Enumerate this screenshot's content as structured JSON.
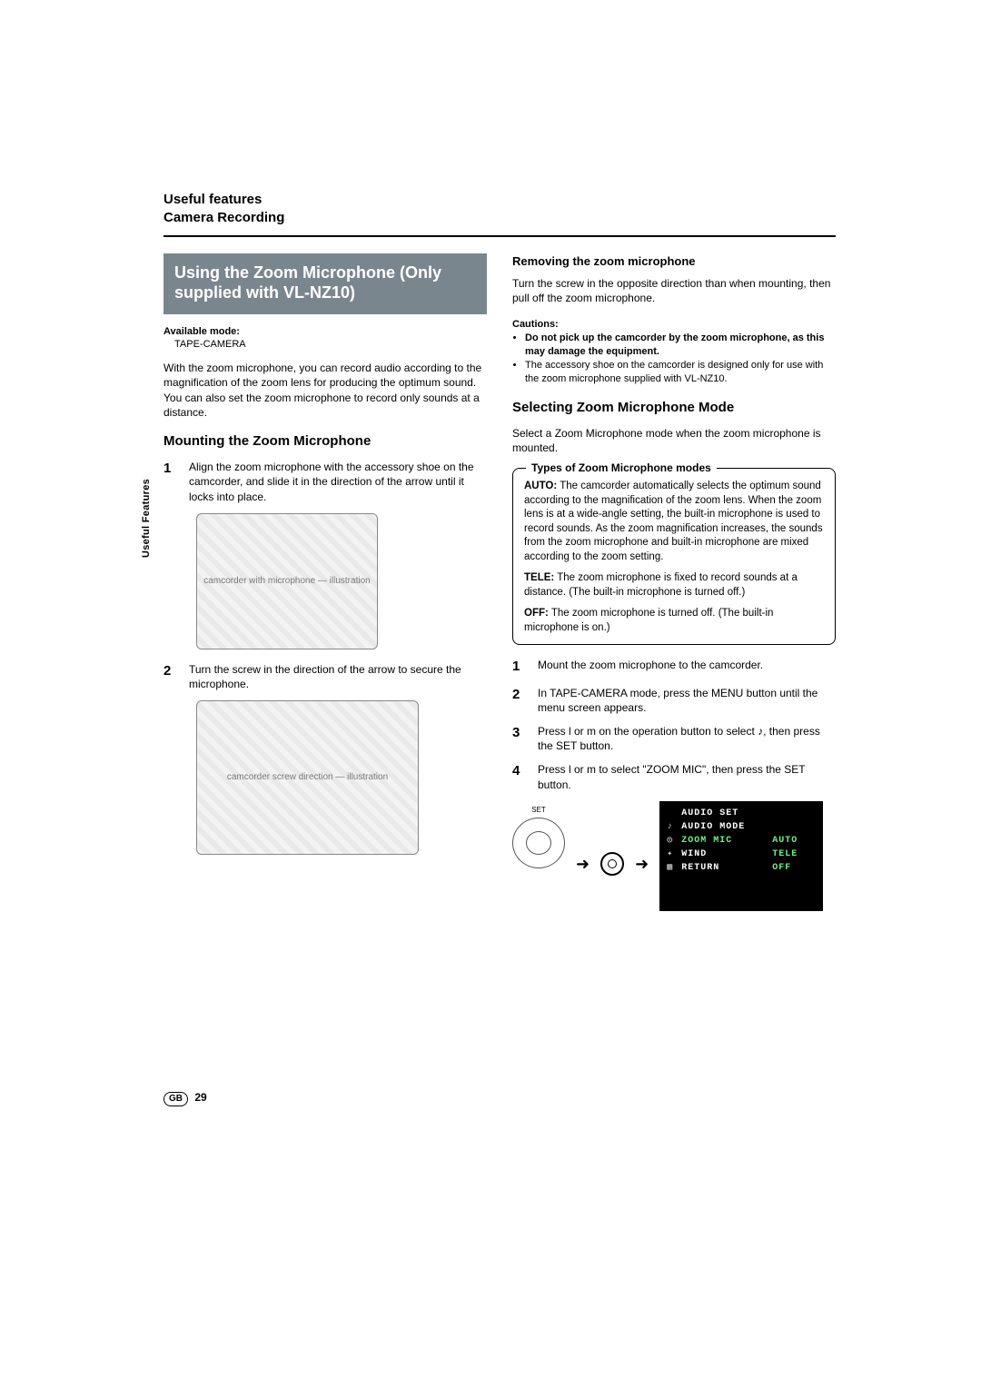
{
  "header": {
    "line1": "Useful features",
    "line2": "Camera Recording"
  },
  "sidebar": {
    "label": "Useful Features"
  },
  "left": {
    "banner": "Using the Zoom Microphone (Only supplied with VL-NZ10)",
    "available_mode_label": "Available mode:",
    "available_mode_value": "TAPE-CAMERA",
    "intro": "With the zoom microphone, you can record audio according to the magnification of the zoom lens for producing the optimum sound. You can also set the zoom microphone to record only sounds at a distance.",
    "mounting_heading": "Mounting the Zoom Microphone",
    "steps": [
      "Align the zoom microphone with the accessory shoe on the camcorder, and slide it in the direction of the arrow until it locks into place.",
      "Turn the screw in the direction of the arrow to secure the microphone."
    ],
    "img1_alt": "camcorder with microphone — illustration",
    "img2_alt": "camcorder screw direction — illustration"
  },
  "right": {
    "removing_heading": "Removing the zoom microphone",
    "removing_text": "Turn the screw in the opposite direction than when mounting, then pull off the zoom microphone.",
    "cautions_label": "Cautions:",
    "caution_bold": "Do not pick up the camcorder by the zoom microphone, as this may damage the equipment.",
    "caution_plain": "The accessory shoe on the camcorder is designed only for use with the zoom microphone supplied with VL-NZ10.",
    "selecting_heading": "Selecting Zoom Microphone Mode",
    "selecting_text": "Select a Zoom Microphone mode when the zoom microphone is mounted.",
    "modes_legend": "Types of Zoom Microphone modes",
    "modes": {
      "auto_key": "AUTO:",
      "auto_text": " The camcorder automatically selects the optimum sound according to the magnification of the zoom lens. When the zoom lens is at a wide-angle setting, the built-in microphone is used to record sounds. As the zoom magnification increases, the sounds from the zoom microphone and built-in microphone are mixed according to the zoom setting.",
      "tele_key": "TELE:",
      "tele_text": " The zoom microphone is fixed to record sounds at a distance. (The built-in microphone is turned off.)",
      "off_key": "OFF:",
      "off_text": " The zoom microphone is turned off. (The built-in microphone is on.)"
    },
    "steps": [
      "Mount the zoom microphone to the camcorder.",
      "In TAPE-CAMERA mode, press the MENU button until the menu screen appears.",
      "Press l or m on the operation button to select ♪, then press the SET button.",
      "Press l or m to select \"ZOOM MIC\", then press the SET button."
    ],
    "set_label": "SET",
    "menu": {
      "title": "AUDIO SET",
      "rows": [
        {
          "icon": "♪",
          "label": "AUDIO MODE",
          "value": ""
        },
        {
          "icon": "◎",
          "label": "ZOOM MIC",
          "value": "AUTO"
        },
        {
          "icon": "✦",
          "label": "WIND",
          "value": "TELE"
        },
        {
          "icon": "▦",
          "label": "RETURN",
          "value": "OFF"
        }
      ]
    }
  },
  "footer": {
    "region": "GB",
    "page": "29"
  },
  "colors": {
    "banner_bg": "#7a868e",
    "banner_fg": "#ffffff",
    "menu_bg": "#000000",
    "menu_fg": "#ffffff",
    "menu_accent": "#6cf08a",
    "text": "#000000",
    "rule": "#000000"
  },
  "typography": {
    "body_pt": 12,
    "h2_pt": 15,
    "banner_pt": 18,
    "caption_pt": 11
  }
}
